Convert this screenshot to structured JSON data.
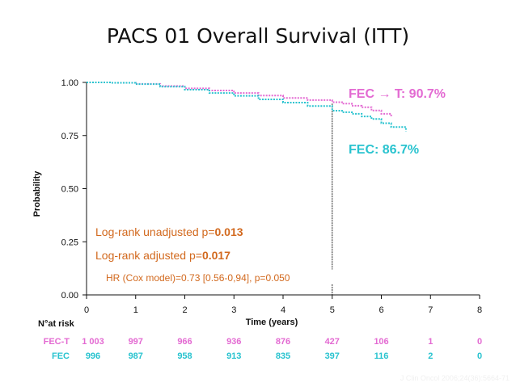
{
  "title": "PACS 01 Overall Survival (ITT)",
  "colors": {
    "fect": "#e36ad2",
    "fec": "#29c3cf",
    "stat": "#d2691e",
    "axis": "#111111"
  },
  "chart_data": {
    "type": "line",
    "title": "PACS 01 Overall Survival (ITT)",
    "xlabel": "Time (years)",
    "ylabel": "Probability",
    "xlim": [
      0,
      8
    ],
    "ylim": [
      0,
      1
    ],
    "x_ticks": [
      "0",
      "1",
      "2",
      "3",
      "4",
      "5",
      "6",
      "7",
      "8"
    ],
    "y_ticks": [
      "0.00",
      "0.25",
      "0.50",
      "0.75",
      "1.00"
    ],
    "grid": false,
    "series": [
      {
        "name": "FEC → T: 90.7%",
        "color": "#e36ad2",
        "x": [
          0,
          0.5,
          1,
          1.5,
          2,
          2.5,
          3,
          3.5,
          4,
          4.5,
          5,
          5.2,
          5.4,
          5.6,
          5.8,
          6.0,
          6.2
        ],
        "y": [
          1.0,
          0.998,
          0.993,
          0.983,
          0.972,
          0.962,
          0.95,
          0.938,
          0.927,
          0.917,
          0.907,
          0.9,
          0.89,
          0.883,
          0.868,
          0.852,
          0.84
        ]
      },
      {
        "name": "FEC: 86.7%",
        "color": "#29c3cf",
        "x": [
          0,
          0.5,
          1,
          1.5,
          2,
          2.5,
          3,
          3.5,
          4,
          4.5,
          5,
          5.2,
          5.4,
          5.6,
          5.8,
          6.0,
          6.2,
          6.5
        ],
        "y": [
          1.0,
          0.998,
          0.992,
          0.98,
          0.966,
          0.95,
          0.937,
          0.92,
          0.905,
          0.889,
          0.867,
          0.86,
          0.852,
          0.84,
          0.828,
          0.808,
          0.79,
          0.77
        ]
      }
    ],
    "marker_x": 5,
    "annotations": {
      "logrank_unadj_label": "Log-rank unadjusted p=",
      "logrank_unadj_value": "0.013",
      "logrank_adj_label": "Log-rank adjusted p=",
      "logrank_adj_value": "0.017",
      "hr": "HR (Cox model)=0.73 [0.56-0,94], p=0.050"
    },
    "risk_table": {
      "label": "N°at risk",
      "rows": [
        {
          "name": "FEC-T",
          "color": "#e36ad2",
          "values": [
            "1 003",
            "997",
            "966",
            "936",
            "876",
            "427",
            "106",
            "1",
            "0"
          ]
        },
        {
          "name": "FEC",
          "color": "#29c3cf",
          "values": [
            "996",
            "987",
            "958",
            "913",
            "835",
            "397",
            "116",
            "2",
            "0"
          ]
        }
      ]
    }
  },
  "citation": "J Clin Oncol 2006;24(36):5664-71"
}
